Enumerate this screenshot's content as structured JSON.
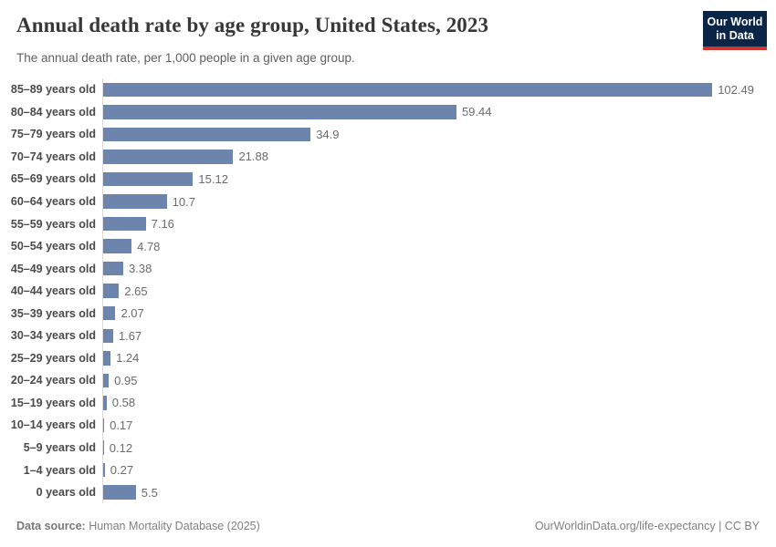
{
  "header": {
    "title": "Annual death rate by age group, United States, 2023",
    "subtitle": "The annual death rate, per 1,000 people in a given age group.",
    "logo": {
      "line1": "Our World",
      "line2": "in Data",
      "bg_color": "#0b2546",
      "accent_color": "#cd3731"
    }
  },
  "chart_data": {
    "type": "bar",
    "orientation": "horizontal",
    "title": "Annual death rate by age group, United States, 2023",
    "subtitle": "The annual death rate, per 1,000 people in a given age group.",
    "categories": [
      "85–89 years old",
      "80–84 years old",
      "75–79 years old",
      "70–74 years old",
      "65–69 years old",
      "60–64 years old",
      "55–59 years old",
      "50–54 years old",
      "45–49 years old",
      "40–44 years old",
      "35–39 years old",
      "30–34 years old",
      "25–29 years old",
      "20–24 years old",
      "15–19 years old",
      "10–14 years old",
      "5–9 years old",
      "1–4 years old",
      "0 years old"
    ],
    "values": [
      102.49,
      59.44,
      34.9,
      21.88,
      15.12,
      10.7,
      7.16,
      4.78,
      3.38,
      2.65,
      2.07,
      1.67,
      1.24,
      0.95,
      0.58,
      0.17,
      0.12,
      0.27,
      5.5
    ],
    "value_labels": [
      "102.49",
      "59.44",
      "34.9",
      "21.88",
      "15.12",
      "10.7",
      "7.16",
      "4.78",
      "3.38",
      "2.65",
      "2.07",
      "1.67",
      "1.24",
      "0.95",
      "0.58",
      "0.17",
      "0.12",
      "0.27",
      "5.5"
    ],
    "xlabel": "",
    "ylabel": "",
    "xlim": [
      0,
      110
    ],
    "grid": false,
    "legend": false,
    "bar_color": "#6d84ad",
    "axis_line_color": "#d9d9d9"
  },
  "footer": {
    "source_label": "Data source:",
    "source_value": " Human Mortality Database (2025)",
    "credit": "OurWorldinData.org/life-expectancy | CC BY"
  }
}
